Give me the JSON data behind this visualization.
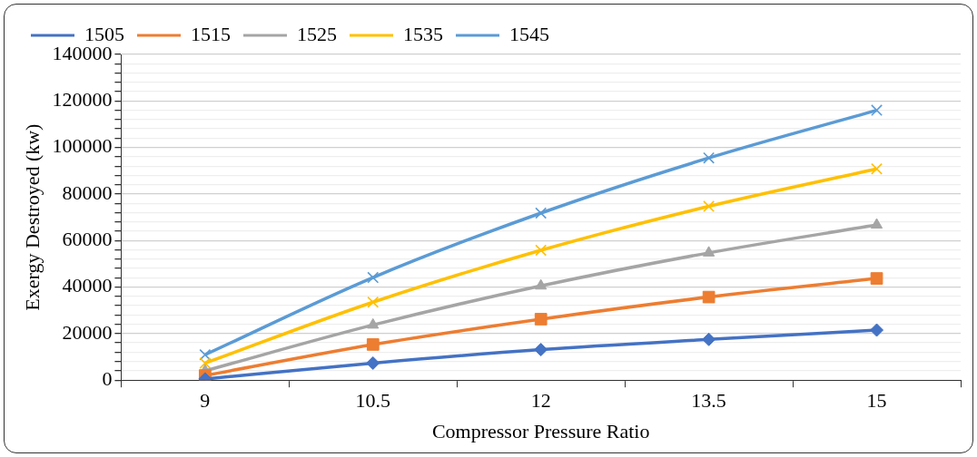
{
  "chart_data": {
    "type": "line",
    "xlabel": "Compressor Pressure Ratio",
    "ylabel": "Exergy Destroyed (kw)",
    "categories": [
      "9",
      "10.5",
      "12",
      "13.5",
      "15"
    ],
    "series": [
      {
        "name": "1505",
        "color": "#4472c4",
        "marker": "diamond",
        "values": [
          500,
          7300,
          13100,
          17500,
          21500
        ]
      },
      {
        "name": "1515",
        "color": "#ed7d31",
        "marker": "square",
        "values": [
          2000,
          15300,
          26200,
          35700,
          43700
        ]
      },
      {
        "name": "1525",
        "color": "#a5a5a5",
        "marker": "triangle",
        "values": [
          4000,
          23700,
          40500,
          54700,
          66700
        ]
      },
      {
        "name": "1535",
        "color": "#ffc000",
        "marker": "cross",
        "values": [
          7300,
          33500,
          55800,
          74700,
          90800
        ]
      },
      {
        "name": "1545",
        "color": "#5b9bd5",
        "marker": "cross",
        "values": [
          10900,
          44100,
          71800,
          95500,
          116000
        ]
      }
    ],
    "ylim": [
      0,
      140000
    ],
    "yticks": [
      0,
      {
        "value": 4000,
        "label": null
      },
      {
        "value": 8000,
        "label": null
      },
      {
        "value": 12000,
        "label": null
      },
      {
        "value": 16000,
        "label": null
      },
      20000,
      {
        "value": 24000,
        "label": null
      },
      {
        "value": 28000,
        "label": null
      },
      {
        "value": 32000,
        "label": null
      },
      {
        "value": 36000,
        "label": null
      },
      40000,
      {
        "value": 44000,
        "label": null
      },
      {
        "value": 48000,
        "label": null
      },
      {
        "value": 52000,
        "label": null
      },
      {
        "value": 56000,
        "label": null
      },
      60000,
      {
        "value": 64000,
        "label": null
      },
      {
        "value": 68000,
        "label": null
      },
      {
        "value": 72000,
        "label": null
      },
      {
        "value": 76000,
        "label": null
      },
      80000,
      {
        "value": 84000,
        "label": null
      },
      {
        "value": 88000,
        "label": null
      },
      {
        "value": 92000,
        "label": null
      },
      {
        "value": 96000,
        "label": null
      },
      100000,
      {
        "value": 104000,
        "label": null
      },
      {
        "value": 108000,
        "label": null
      },
      {
        "value": 112000,
        "label": null
      },
      {
        "value": 116000,
        "label": null
      },
      120000,
      {
        "value": 124000,
        "label": null
      },
      {
        "value": 128000,
        "label": null
      },
      {
        "value": 132000,
        "label": null
      },
      {
        "value": 136000,
        "label": null
      },
      140000
    ],
    "grid": "y",
    "legend": "top left",
    "line_style": "solid"
  }
}
